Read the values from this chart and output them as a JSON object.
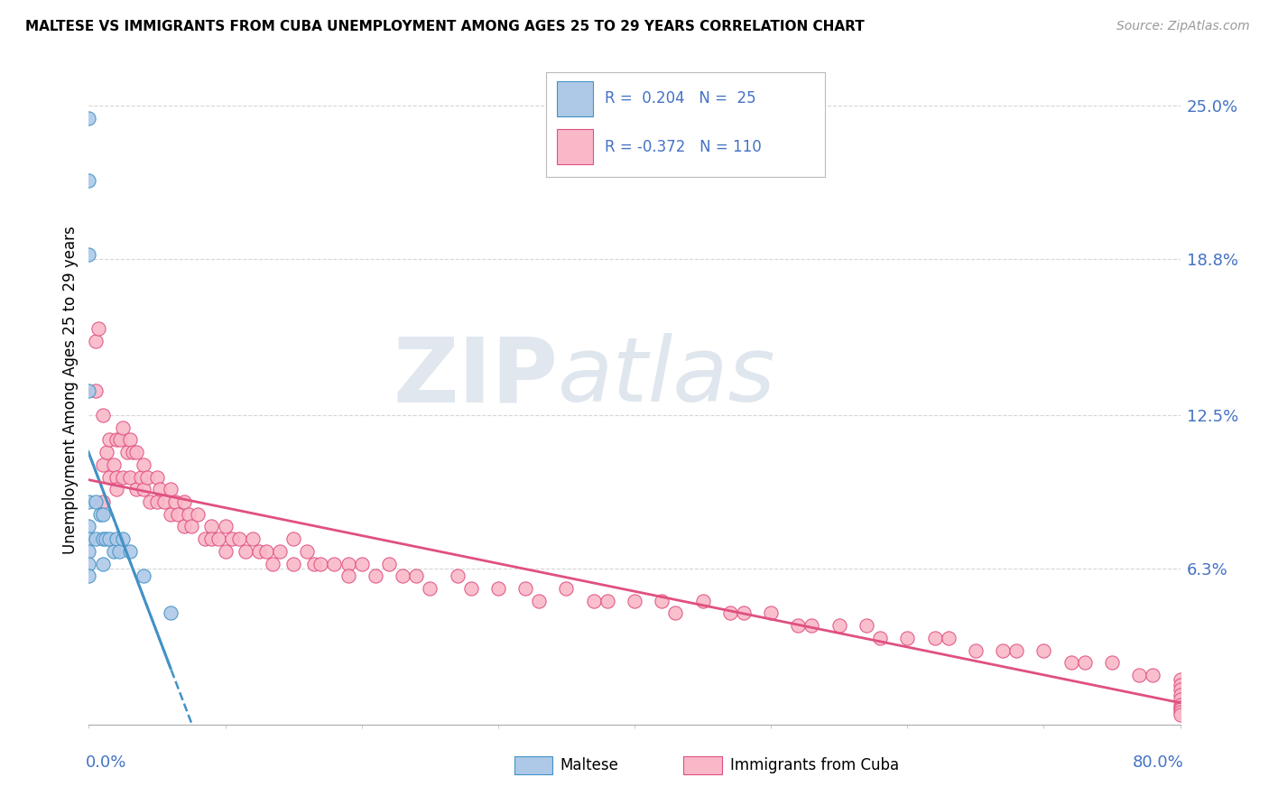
{
  "title": "MALTESE VS IMMIGRANTS FROM CUBA UNEMPLOYMENT AMONG AGES 25 TO 29 YEARS CORRELATION CHART",
  "source": "Source: ZipAtlas.com",
  "ylabel": "Unemployment Among Ages 25 to 29 years",
  "ytick_labels": [
    "6.3%",
    "12.5%",
    "18.8%",
    "25.0%"
  ],
  "ytick_values": [
    0.063,
    0.125,
    0.188,
    0.25
  ],
  "xlim": [
    0.0,
    0.8
  ],
  "ylim": [
    0.0,
    0.27
  ],
  "watermark_zip": "ZIP",
  "watermark_atlas": "atlas",
  "maltese_color": "#aec9e8",
  "malta_edge_color": "#4292c6",
  "cuba_color": "#f9b8c8",
  "cuba_edge_color": "#e05080",
  "maltese_line_color": "#4292c6",
  "cuba_line_color": "#e05080",
  "maltese_r": 0.204,
  "maltese_n": 25,
  "cuba_r": -0.372,
  "cuba_n": 110,
  "legend_maltese_color": "#aec9e8",
  "legend_cuba_color": "#f9b8c8",
  "maltese_x": [
    0.0,
    0.0,
    0.0,
    0.0,
    0.0,
    0.0,
    0.0,
    0.0,
    0.0,
    0.0,
    0.005,
    0.005,
    0.008,
    0.01,
    0.01,
    0.01,
    0.012,
    0.015,
    0.018,
    0.02,
    0.022,
    0.025,
    0.03,
    0.04,
    0.06
  ],
  "maltese_y": [
    0.245,
    0.22,
    0.19,
    0.135,
    0.09,
    0.08,
    0.075,
    0.07,
    0.065,
    0.06,
    0.09,
    0.075,
    0.085,
    0.085,
    0.075,
    0.065,
    0.075,
    0.075,
    0.07,
    0.075,
    0.07,
    0.075,
    0.07,
    0.06,
    0.045
  ],
  "cuba_x": [
    0.005,
    0.005,
    0.007,
    0.01,
    0.01,
    0.01,
    0.013,
    0.015,
    0.015,
    0.018,
    0.02,
    0.02,
    0.02,
    0.023,
    0.025,
    0.025,
    0.028,
    0.03,
    0.03,
    0.032,
    0.035,
    0.035,
    0.038,
    0.04,
    0.04,
    0.043,
    0.045,
    0.05,
    0.05,
    0.052,
    0.055,
    0.06,
    0.06,
    0.063,
    0.065,
    0.07,
    0.07,
    0.073,
    0.075,
    0.08,
    0.085,
    0.09,
    0.09,
    0.095,
    0.1,
    0.1,
    0.105,
    0.11,
    0.115,
    0.12,
    0.125,
    0.13,
    0.135,
    0.14,
    0.15,
    0.15,
    0.16,
    0.165,
    0.17,
    0.18,
    0.19,
    0.19,
    0.2,
    0.21,
    0.22,
    0.23,
    0.24,
    0.25,
    0.27,
    0.28,
    0.3,
    0.32,
    0.33,
    0.35,
    0.37,
    0.38,
    0.4,
    0.42,
    0.43,
    0.45,
    0.47,
    0.48,
    0.5,
    0.52,
    0.53,
    0.55,
    0.57,
    0.58,
    0.6,
    0.62,
    0.63,
    0.65,
    0.67,
    0.68,
    0.7,
    0.72,
    0.73,
    0.75,
    0.77,
    0.78,
    0.8,
    0.8,
    0.8,
    0.8,
    0.8,
    0.8,
    0.8,
    0.8,
    0.8,
    0.8
  ],
  "cuba_y": [
    0.155,
    0.135,
    0.16,
    0.125,
    0.105,
    0.09,
    0.11,
    0.115,
    0.1,
    0.105,
    0.115,
    0.1,
    0.095,
    0.115,
    0.12,
    0.1,
    0.11,
    0.115,
    0.1,
    0.11,
    0.11,
    0.095,
    0.1,
    0.105,
    0.095,
    0.1,
    0.09,
    0.1,
    0.09,
    0.095,
    0.09,
    0.095,
    0.085,
    0.09,
    0.085,
    0.09,
    0.08,
    0.085,
    0.08,
    0.085,
    0.075,
    0.08,
    0.075,
    0.075,
    0.08,
    0.07,
    0.075,
    0.075,
    0.07,
    0.075,
    0.07,
    0.07,
    0.065,
    0.07,
    0.065,
    0.075,
    0.07,
    0.065,
    0.065,
    0.065,
    0.065,
    0.06,
    0.065,
    0.06,
    0.065,
    0.06,
    0.06,
    0.055,
    0.06,
    0.055,
    0.055,
    0.055,
    0.05,
    0.055,
    0.05,
    0.05,
    0.05,
    0.05,
    0.045,
    0.05,
    0.045,
    0.045,
    0.045,
    0.04,
    0.04,
    0.04,
    0.04,
    0.035,
    0.035,
    0.035,
    0.035,
    0.03,
    0.03,
    0.03,
    0.03,
    0.025,
    0.025,
    0.025,
    0.02,
    0.02,
    0.018,
    0.016,
    0.014,
    0.012,
    0.01,
    0.008,
    0.007,
    0.006,
    0.005,
    0.004
  ]
}
